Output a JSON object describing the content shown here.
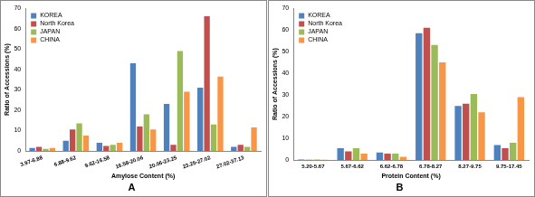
{
  "chart_data": [
    {
      "type": "bar",
      "title": "A",
      "x_label": "Amylose Content (%)",
      "y_label": "Ratio of Accessions (%)",
      "categories": [
        "3.97-6.88",
        "6.88-9.62",
        "9.62-16.58",
        "16.58-20.06",
        "20.06-23.25",
        "23.25-27.02",
        "27.02-37.13"
      ],
      "series": [
        {
          "name": "KOREA",
          "color": "#4f81bd",
          "values": [
            1.5,
            5,
            4,
            43,
            23,
            31,
            2
          ]
        },
        {
          "name": "North Korea",
          "color": "#c0504d",
          "values": [
            2,
            10.5,
            2.5,
            12,
            3,
            66,
            3
          ]
        },
        {
          "name": "JAPAN",
          "color": "#9bbb59",
          "values": [
            1,
            13.5,
            3,
            18,
            49,
            13,
            2
          ]
        },
        {
          "name": "CHINA",
          "color": "#f79646",
          "values": [
            1.5,
            7.5,
            4,
            10.5,
            29,
            36.5,
            11.5
          ]
        }
      ],
      "ylim": [
        0,
        70
      ],
      "yticks": [
        0,
        10,
        20,
        30,
        40,
        50,
        60,
        70
      ],
      "grid": false,
      "legend": "upper left"
    },
    {
      "type": "bar",
      "title": "B",
      "x_label": "Protein Content (%)",
      "y_label": "Ratio of Accessions (%)",
      "categories": [
        "5.20-5.67",
        "5.67-6.62",
        "6.62-6.78",
        "6.78-8.27",
        "8.27-9.75",
        "9.75-17.45"
      ],
      "series": [
        {
          "name": "KOREA",
          "color": "#4f81bd",
          "values": [
            0.3,
            5.5,
            3.5,
            58.5,
            25,
            7
          ]
        },
        {
          "name": "North Korea",
          "color": "#c0504d",
          "values": [
            0.2,
            4,
            3,
            61,
            26,
            5.5
          ]
        },
        {
          "name": "JAPAN",
          "color": "#9bbb59",
          "values": [
            0.3,
            5.5,
            3,
            53,
            30.5,
            8
          ]
        },
        {
          "name": "CHINA",
          "color": "#f79646",
          "values": [
            0.2,
            3,
            1.5,
            45,
            22,
            29
          ]
        }
      ],
      "ylim": [
        0,
        70
      ],
      "yticks": [
        0,
        10,
        20,
        30,
        40,
        50,
        60,
        70
      ],
      "grid": false,
      "legend": "upper left"
    }
  ]
}
